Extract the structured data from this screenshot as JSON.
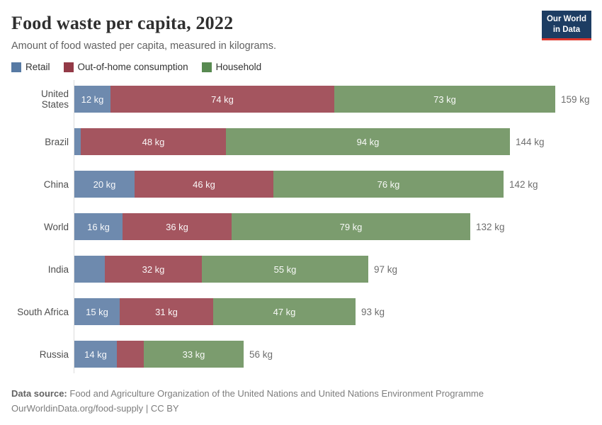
{
  "logo": {
    "line1": "Our World",
    "line2": "in Data"
  },
  "header": {
    "title": "Food waste per capita, 2022",
    "subtitle": "Amount of food wasted per capita, measured in kilograms."
  },
  "chart_data": {
    "type": "bar",
    "orientation": "horizontal",
    "stacked": true,
    "unit": "kg",
    "grid": false,
    "legend_position": "top",
    "xlim": [
      0,
      160
    ],
    "categories": [
      "United States",
      "Brazil",
      "China",
      "World",
      "India",
      "South Africa",
      "Russia"
    ],
    "series": [
      {
        "name": "Retail",
        "color": "#6e8aae",
        "legend_color": "#577aa4",
        "values": [
          12,
          2,
          20,
          16,
          10,
          15,
          14
        ],
        "labels": [
          "12 kg",
          "",
          "20 kg",
          "16 kg",
          "",
          "15 kg",
          "14 kg"
        ]
      },
      {
        "name": "Out-of-home consumption",
        "color": "#a4555f",
        "legend_color": "#933a47",
        "values": [
          74,
          48,
          46,
          36,
          32,
          31,
          9
        ],
        "labels": [
          "74 kg",
          "48 kg",
          "46 kg",
          "36 kg",
          "32 kg",
          "31 kg",
          ""
        ]
      },
      {
        "name": "Household",
        "color": "#7b9c6e",
        "legend_color": "#588a51",
        "values": [
          73,
          94,
          76,
          79,
          55,
          47,
          33
        ],
        "labels": [
          "73 kg",
          "94 kg",
          "76 kg",
          "79 kg",
          "55 kg",
          "47 kg",
          "33 kg"
        ]
      }
    ],
    "totals": [
      "159 kg",
      "144 kg",
      "142 kg",
      "132 kg",
      "97 kg",
      "93 kg",
      "56 kg"
    ]
  },
  "footer": {
    "source_label": "Data source:",
    "source_text": "Food and Agriculture Organization of the United Nations and United Nations Environment Programme",
    "url": "OurWorldinData.org/food-supply",
    "separator": "|",
    "license": "CC BY"
  }
}
